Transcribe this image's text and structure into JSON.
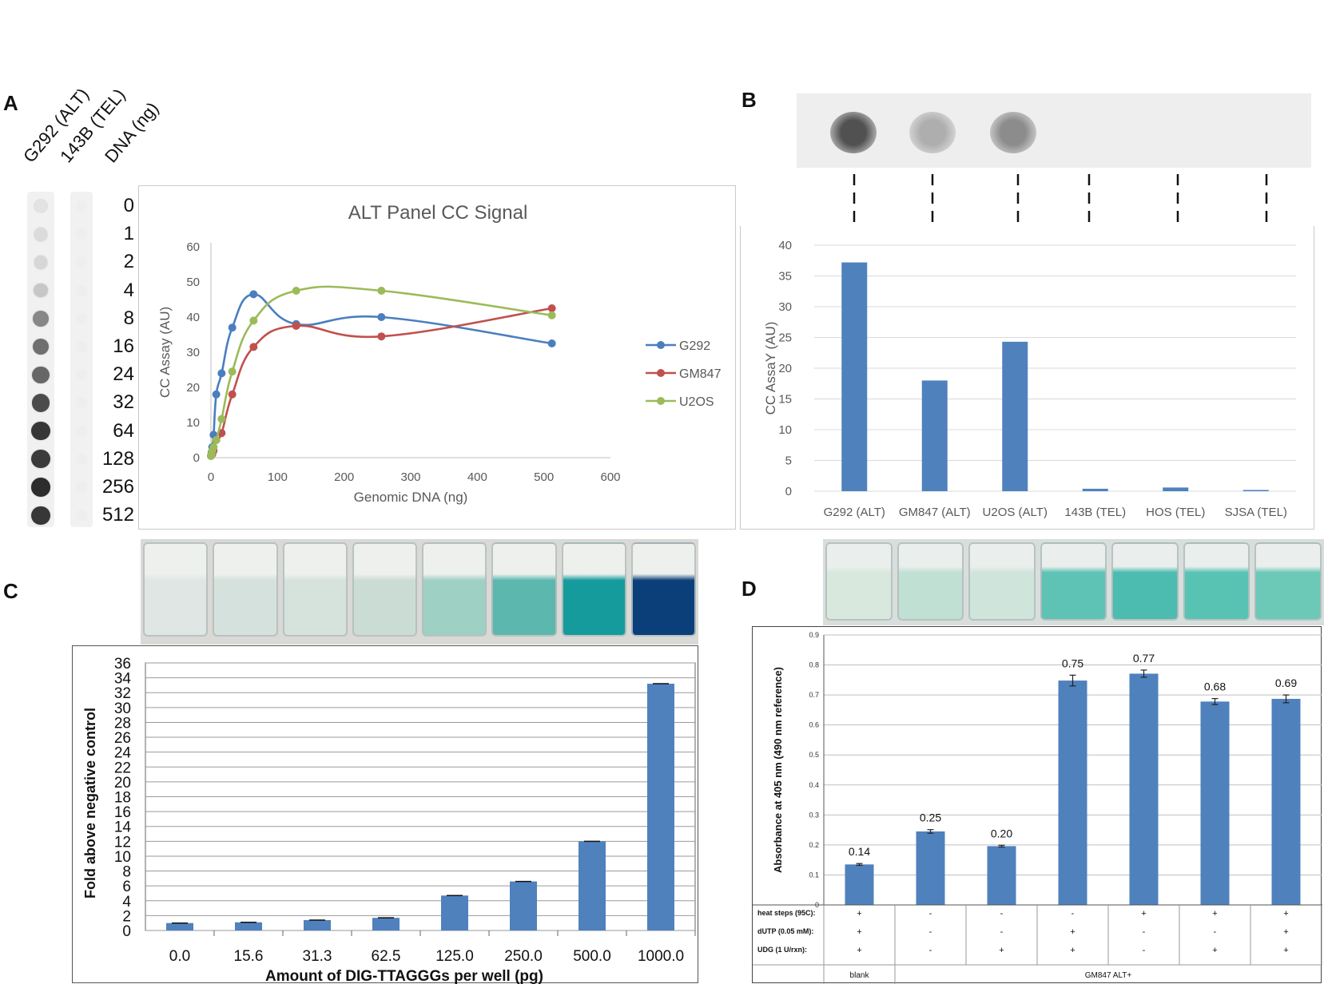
{
  "panel_labels": [
    "A",
    "B",
    "C",
    "D"
  ],
  "panel_a": {
    "column_headers": [
      "G292 (ALT)",
      "143B (TEL)",
      "DNA (ng)"
    ],
    "dna_amounts": [
      "0",
      "1",
      "2",
      "4",
      "8",
      "16",
      "24",
      "32",
      "64",
      "128",
      "256",
      "512"
    ],
    "g292_dot_intensity": [
      0.04,
      0.08,
      0.1,
      0.18,
      0.5,
      0.62,
      0.66,
      0.8,
      0.9,
      0.88,
      0.95,
      0.9
    ],
    "tel_dot_intensity": [
      0,
      0,
      0,
      0,
      0,
      0,
      0,
      0,
      0,
      0,
      0,
      0
    ]
  },
  "panel_b": {
    "blot_intensity": [
      0.85,
      0.3,
      0.5,
      0,
      0,
      0
    ]
  },
  "panel_c": {
    "well_colors": [
      "#dfe6e4",
      "#d5e1dc",
      "#d6e3dd",
      "#cbdcd4",
      "#9ed0c3",
      "#5cb7ae",
      "#169b9c",
      "#0b3f7a"
    ]
  },
  "panel_d": {
    "well_colors": [
      "#d9e8dc",
      "#bfe0d2",
      "#cfe4da",
      "#5ec3b5",
      "#4cbcb0",
      "#58c2b3",
      "#6cc9b8"
    ]
  },
  "chart_data": [
    {
      "type": "line",
      "title": "ALT Panel CC Signal",
      "xlabel": "Genomic DNA (ng)",
      "ylabel": "CC Assay (AU)",
      "xlim": [
        0,
        600
      ],
      "ylim": [
        0,
        60
      ],
      "xticks": [
        "0",
        "100",
        "200",
        "300",
        "400",
        "500",
        "600"
      ],
      "yticks": [
        "0",
        "10",
        "20",
        "30",
        "40",
        "50",
        "60"
      ],
      "x": [
        0,
        1,
        2,
        4,
        8,
        16,
        32,
        64,
        128,
        256,
        512
      ],
      "series": [
        {
          "name": "G292",
          "color": "#4a7ebf",
          "values": [
            0.5,
            1.5,
            3,
            6.5,
            18,
            24,
            37,
            46.5,
            38,
            40,
            32.5
          ]
        },
        {
          "name": "GM847",
          "color": "#c0504d",
          "values": [
            0.5,
            0.8,
            1,
            2,
            5,
            7,
            18,
            31.5,
            37.5,
            34.5,
            42.5
          ]
        },
        {
          "name": "U2OS",
          "color": "#9bbb59",
          "values": [
            0.5,
            1,
            2,
            3,
            5,
            11,
            24.5,
            39,
            47.5,
            47.5,
            40.5
          ]
        }
      ],
      "legend": "right",
      "grid": false
    },
    {
      "type": "bar",
      "categories": [
        "G292 (ALT)",
        "GM847 (ALT)",
        "U2OS (ALT)",
        "143B (TEL)",
        "HOS (TEL)",
        "SJSA (TEL)"
      ],
      "values": [
        37.2,
        18,
        24.3,
        0.4,
        0.6,
        0.2
      ],
      "ylabel": "CC AssaY (AU)",
      "ylim": [
        0,
        40
      ],
      "yticks": [
        "0",
        "5",
        "10",
        "15",
        "20",
        "25",
        "30",
        "35",
        "40"
      ],
      "grid": true,
      "color": "#4f81bd"
    },
    {
      "type": "bar",
      "categories": [
        "0.0",
        "15.6",
        "31.3",
        "62.5",
        "125.0",
        "250.0",
        "500.0",
        "1000.0"
      ],
      "values": [
        1.0,
        1.1,
        1.4,
        1.7,
        4.7,
        6.6,
        12.0,
        33.2
      ],
      "xlabel": "Amount of DIG-TTAGGGs per well (pg)",
      "ylabel": "Fold above negative control",
      "ylim": [
        0,
        36
      ],
      "yticks": [
        "0",
        "2",
        "4",
        "6",
        "8",
        "10",
        "12",
        "14",
        "16",
        "18",
        "20",
        "22",
        "24",
        "26",
        "28",
        "30",
        "32",
        "34",
        "36"
      ],
      "grid": true,
      "color": "#4f81bd"
    },
    {
      "type": "bar",
      "values": [
        0.135,
        0.245,
        0.196,
        0.748,
        0.771,
        0.678,
        0.687
      ],
      "errors": [
        0.003,
        0.006,
        0.003,
        0.018,
        0.012,
        0.01,
        0.013
      ],
      "data_labels": [
        "0.14",
        "0.25",
        "0.20",
        "0.75",
        "0.77",
        "0.68",
        "0.69"
      ],
      "ylabel": "Absorbance at 405 nm (490 nm reference)",
      "ylim": [
        0,
        0.9
      ],
      "yticks": [
        "0",
        "0.1",
        "0.2",
        "0.3",
        "0.4",
        "0.5",
        "0.6",
        "0.7",
        "0.8",
        "0.9"
      ],
      "grid": true,
      "color": "#4f81bd",
      "condition_rows": [
        {
          "label": "heat steps (95C):",
          "values": [
            "+",
            "-",
            "-",
            "-",
            "+",
            "+",
            "+"
          ]
        },
        {
          "label": "dUTP (0.05 mM):",
          "values": [
            "+",
            "-",
            "-",
            "+",
            "-",
            "-",
            "+"
          ]
        },
        {
          "label": "UDG (1 U/rxn):",
          "values": [
            "+",
            "-",
            "+",
            "+",
            "-",
            "+",
            "+"
          ]
        }
      ],
      "groups": [
        "blank",
        "GM847 ALT+"
      ]
    }
  ]
}
